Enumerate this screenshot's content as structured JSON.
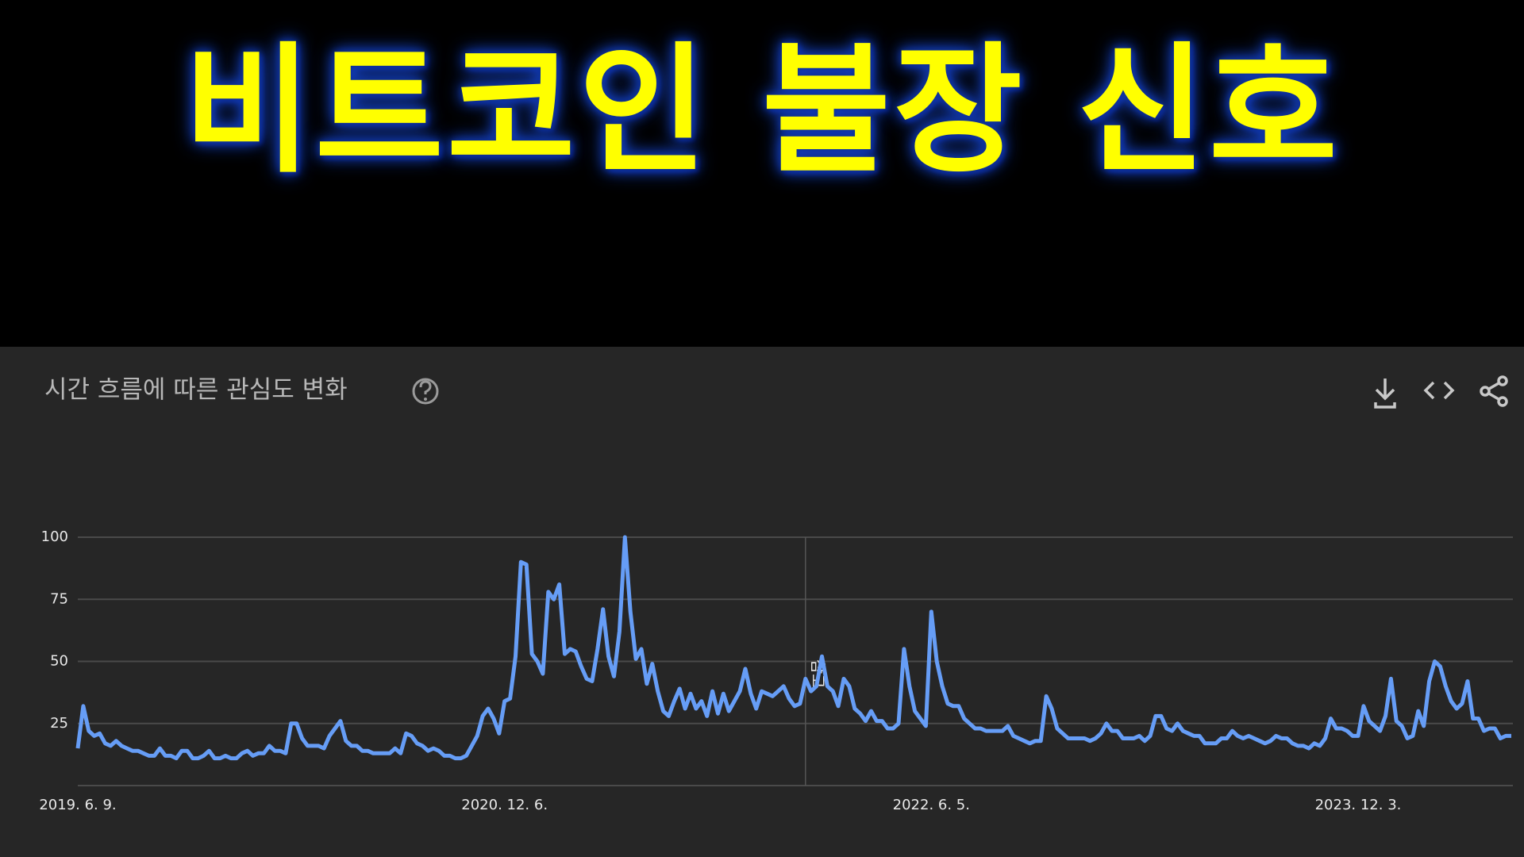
{
  "headline": "비트코인 불장 신호",
  "chart_data": {
    "type": "line",
    "title": "시간 흐름에 따른 관심도 변화",
    "annotation": "참고",
    "categories": [
      "2019. 6. 9.",
      null,
      null,
      null,
      null,
      null,
      null,
      null,
      null,
      null,
      null,
      null,
      null,
      null,
      null,
      null,
      null,
      null,
      null,
      null,
      null,
      null,
      null,
      null,
      null,
      null,
      null,
      null,
      null,
      null,
      null,
      null,
      null,
      null,
      null,
      null,
      null,
      null,
      null,
      null,
      null,
      null,
      null,
      null,
      null,
      null,
      null,
      null,
      null,
      null,
      null,
      null,
      null,
      null,
      null,
      null,
      null,
      null,
      null,
      null,
      null,
      null,
      null,
      null,
      null,
      null,
      null,
      null,
      null,
      null,
      null,
      null,
      null,
      null,
      null,
      null,
      null,
      null,
      "2020. 12. 6.",
      null,
      null,
      null,
      null,
      null,
      null,
      null,
      null,
      null,
      null,
      null,
      null,
      null,
      null,
      null,
      null,
      null,
      null,
      null,
      null,
      null,
      null,
      null,
      null,
      null,
      null,
      null,
      null,
      null,
      null,
      null,
      null,
      null,
      null,
      null,
      null,
      null,
      null,
      null,
      null,
      null,
      null,
      null,
      null,
      null,
      null,
      null,
      null,
      null,
      null,
      null,
      null,
      null,
      null,
      null,
      null,
      null,
      null,
      null,
      null,
      null,
      null,
      null,
      null,
      null,
      null,
      null,
      null,
      null,
      null,
      null,
      null,
      null,
      null,
      null,
      null,
      null,
      "2022. 6. 5.",
      null,
      null,
      null,
      null,
      null,
      null,
      null,
      null,
      null,
      null,
      null,
      null,
      null,
      null,
      null,
      null,
      null,
      null,
      null,
      null,
      null,
      null,
      null,
      null,
      null,
      null,
      null,
      null,
      null,
      null,
      null,
      null,
      null,
      null,
      null,
      null,
      null,
      null,
      null,
      null,
      null,
      null,
      null,
      null,
      null,
      null,
      null,
      null,
      null,
      null,
      null,
      null,
      null,
      null,
      null,
      null,
      null,
      null,
      null,
      null,
      null,
      null,
      null,
      null,
      null,
      null,
      null,
      null,
      null,
      null,
      null,
      null,
      null,
      null,
      null,
      null,
      null,
      "2023. 12. 3.",
      null,
      null,
      null,
      null,
      null,
      null,
      null,
      null,
      null,
      null,
      null,
      null,
      null,
      null,
      null,
      null,
      null,
      null,
      null,
      null,
      null,
      null,
      null,
      null,
      null,
      null,
      null,
      null
    ],
    "series": [
      {
        "name": "비트코인",
        "color": "#669df6",
        "values": [
          15,
          32,
          22,
          20,
          21,
          17,
          16,
          18,
          16,
          15,
          14,
          14,
          13,
          12,
          12,
          15,
          12,
          12,
          11,
          14,
          14,
          11,
          11,
          12,
          14,
          11,
          11,
          12,
          11,
          11,
          13,
          14,
          12,
          13,
          13,
          16,
          14,
          14,
          13,
          25,
          25,
          19,
          16,
          16,
          16,
          15,
          20,
          23,
          26,
          18,
          16,
          16,
          14,
          14,
          13,
          13,
          13,
          13,
          15,
          13,
          21,
          20,
          17,
          16,
          14,
          15,
          14,
          12,
          12,
          11,
          11,
          12,
          16,
          20,
          28,
          31,
          27,
          21,
          34,
          35,
          52,
          90,
          89,
          53,
          50,
          45,
          78,
          75,
          81,
          53,
          55,
          54,
          48,
          43,
          42,
          55,
          71,
          52,
          44,
          62,
          100,
          70,
          51,
          55,
          41,
          49,
          38,
          30,
          28,
          34,
          39,
          31,
          37,
          31,
          34,
          28,
          38,
          29,
          37,
          30,
          34,
          38,
          47,
          37,
          31,
          38,
          37,
          36,
          38,
          40,
          35,
          32,
          33,
          43,
          38,
          40,
          52,
          40,
          38,
          32,
          43,
          40,
          31,
          29,
          26,
          30,
          26,
          26,
          23,
          23,
          25,
          55,
          40,
          30,
          27,
          24,
          70,
          50,
          40,
          33,
          32,
          32,
          27,
          25,
          23,
          23,
          22,
          22,
          22,
          22,
          24,
          20,
          19,
          18,
          17,
          18,
          18,
          36,
          31,
          23,
          21,
          19,
          19,
          19,
          19,
          18,
          19,
          21,
          25,
          22,
          22,
          19,
          19,
          19,
          20,
          18,
          20,
          28,
          28,
          23,
          22,
          25,
          22,
          21,
          20,
          20,
          17,
          17,
          17,
          19,
          19,
          22,
          20,
          19,
          20,
          19,
          18,
          17,
          18,
          20,
          19,
          19,
          17,
          16,
          16,
          15,
          17,
          16,
          19,
          27,
          23,
          23,
          22,
          20,
          20,
          32,
          26,
          24,
          22,
          28,
          43,
          26,
          24,
          19,
          20,
          30,
          24,
          42,
          50,
          48,
          40,
          34,
          31,
          33,
          42,
          27,
          27,
          22,
          23,
          23,
          19,
          20,
          20
        ]
      }
    ],
    "ylim": [
      0,
      100
    ],
    "yticks": [
      25,
      50,
      75,
      100
    ],
    "grid": true
  }
}
